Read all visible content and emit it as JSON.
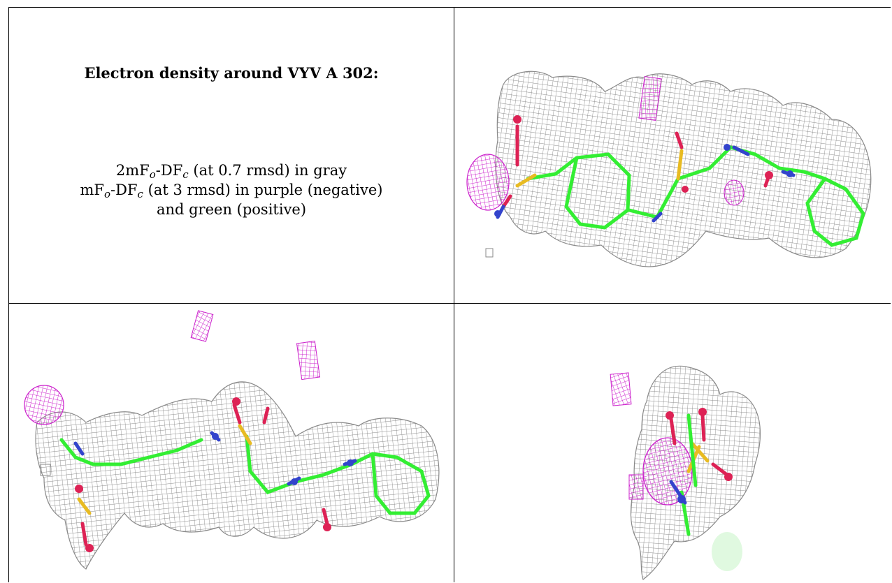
{
  "figure": {
    "caption": {
      "title": "Electron density around VYV A 302:",
      "line1_pre": "2mF",
      "line1_sub1": "o",
      "line1_mid": "-DF",
      "line1_sub2": "c",
      "line1_post": " (at 0.7 rmsd) in gray",
      "line2_pre": "mF",
      "line2_sub1": "o",
      "line2_mid": "-DF",
      "line2_sub2": "c",
      "line2_post": " (at 3 rmsd) in purple (negative)",
      "line3": "and green (positive)"
    },
    "panels": [
      {
        "view": "front",
        "ligand": "VYV A 302"
      },
      {
        "view": "side",
        "ligand": "VYV A 302"
      },
      {
        "view": "end-on",
        "ligand": "VYV A 302"
      }
    ],
    "colors": {
      "map_2fo_fc": "#8a8a8a",
      "map_fo_fc_negative": "#cc22cc",
      "map_fo_fc_positive": "#33ee33",
      "carbon": "#33ee33",
      "nitrogen": "#3344cc",
      "oxygen": "#dd2255",
      "sulfur": "#e8bb22"
    }
  }
}
